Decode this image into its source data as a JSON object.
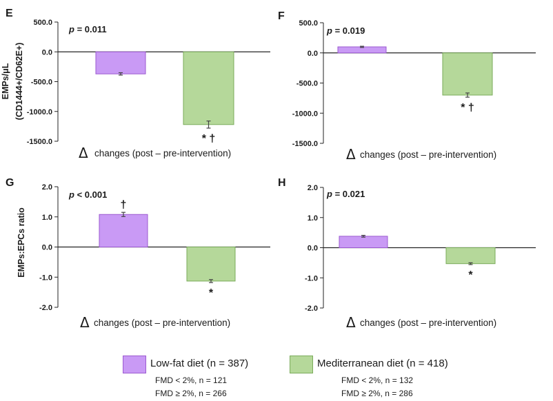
{
  "colors": {
    "lowfat_fill": "#c99af5",
    "lowfat_edge": "#9b59d0",
    "med_fill": "#b5d89a",
    "med_edge": "#7aab5a",
    "axis": "#222222",
    "text": "#1a1a1a"
  },
  "chart_data": [
    {
      "type": "bar",
      "panel_letter": "E",
      "p_text": {
        "p": "p",
        "rest": " = 0.011"
      },
      "ylabel_lines": [
        "EMPs/μL",
        "(CD1444+/CD62E+)"
      ],
      "y_ticks": [
        "500.0",
        "0.0",
        "-500.0",
        "-1000.0",
        "-1500.0"
      ],
      "ylim": [
        -1500,
        500
      ],
      "series": [
        {
          "name": "Low-fat diet",
          "value": -370,
          "error": 20,
          "annotation": ""
        },
        {
          "name": "Mediterranean diet",
          "value": -1220,
          "error": 60,
          "annotation": "* †"
        }
      ],
      "delta": "Δ",
      "xlabel": "changes (post – pre-intervention)"
    },
    {
      "type": "bar",
      "panel_letter": "F",
      "p_text": {
        "p": "p",
        "rest": " = 0.019"
      },
      "ylabel_lines": [],
      "y_ticks": [
        "500.0",
        "0.0",
        "-500.0",
        "-1000.0",
        "-1500.0"
      ],
      "ylim": [
        -1500,
        500
      ],
      "series": [
        {
          "name": "Low-fat diet",
          "value": 100,
          "error": 10,
          "annotation": ""
        },
        {
          "name": "Mediterranean diet",
          "value": -700,
          "error": 35,
          "annotation": "* †"
        }
      ],
      "delta": "Δ",
      "xlabel": "changes (post – pre-intervention)"
    },
    {
      "type": "bar",
      "panel_letter": "G",
      "p_text": {
        "p": "p",
        "rest": " < 0.001"
      },
      "ylabel_lines": [
        "EMPs:EPCs ratio"
      ],
      "y_ticks": [
        "2.0",
        "1.0",
        "0.0",
        "-1.0",
        "-2.0"
      ],
      "ylim": [
        -2,
        2
      ],
      "series": [
        {
          "name": "Low-fat diet",
          "value": 1.08,
          "error": 0.07,
          "annotation": "†"
        },
        {
          "name": "Mediterranean diet",
          "value": -1.13,
          "error": 0.05,
          "annotation": "*"
        }
      ],
      "delta": "Δ",
      "xlabel": "changes (post – pre-intervention)"
    },
    {
      "type": "bar",
      "panel_letter": "H",
      "p_text": {
        "p": "p",
        "rest": " = 0.021"
      },
      "ylabel_lines": [],
      "y_ticks": [
        "2.0",
        "1.0",
        "0.0",
        "-1.0",
        "-2.0"
      ],
      "ylim": [
        -2,
        2
      ],
      "series": [
        {
          "name": "Low-fat diet",
          "value": 0.38,
          "error": 0.03,
          "annotation": ""
        },
        {
          "name": "Mediterranean diet",
          "value": -0.53,
          "error": 0.03,
          "annotation": "*"
        }
      ],
      "delta": "Δ",
      "xlabel": "changes (post – pre-intervention)"
    }
  ],
  "legend": {
    "lowfat": {
      "label": "Low-fat diet (n = 387)",
      "fmd_low": "FMD < 2%, n = 121",
      "fmd_high": "FMD ≥ 2%, n = 266"
    },
    "med": {
      "label": "Mediterranean diet (n = 418)",
      "fmd_low": "FMD < 2%, n = 132",
      "fmd_high": "FMD ≥ 2%, n = 286"
    }
  }
}
